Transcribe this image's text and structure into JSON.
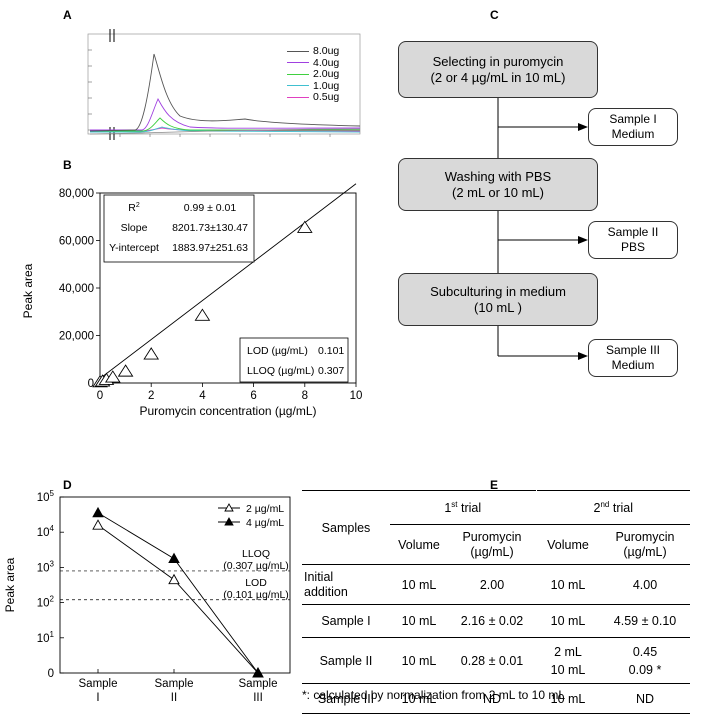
{
  "panels": {
    "A": "A",
    "B": "B",
    "C": "C",
    "D": "D",
    "E": "E"
  },
  "panel_a": {
    "legend": [
      {
        "label": "8.0ug",
        "color": "#555555"
      },
      {
        "label": "4.0ug",
        "color": "#a040e0"
      },
      {
        "label": "2.0ug",
        "color": "#40d040"
      },
      {
        "label": "1.0ug",
        "color": "#40c0d0"
      },
      {
        "label": "0.5ug",
        "color": "#e040c0"
      }
    ]
  },
  "chart_data": [
    {
      "type": "scatter",
      "panel": "B",
      "xlabel": "Puromycin concentration (µg/mL)",
      "ylabel": "Peak area",
      "xlim": [
        0,
        10
      ],
      "ylim": [
        0,
        80000
      ],
      "x_ticks": [
        "0",
        "2",
        "4",
        "6",
        "8",
        "10"
      ],
      "y_ticks": [
        "0",
        "20,000",
        "40,000",
        "60,000",
        "80,000"
      ],
      "points": [
        {
          "x": 0.0,
          "y": 500
        },
        {
          "x": 0.1,
          "y": 800
        },
        {
          "x": 0.25,
          "y": 1500
        },
        {
          "x": 0.5,
          "y": 2500
        },
        {
          "x": 1,
          "y": 5000
        },
        {
          "x": 2,
          "y": 12200
        },
        {
          "x": 4,
          "y": 28500
        },
        {
          "x": 8,
          "y": 65500
        }
      ],
      "fit": {
        "slope": 8201.73,
        "intercept": 1883.97
      },
      "stats": [
        {
          "label": "R",
          "sup": "2",
          "value": "0.99 ± 0.01"
        },
        {
          "label": "Slope",
          "sup": "",
          "value": "8201.73±130.47"
        },
        {
          "label": "Y-intercept",
          "sup": "",
          "value": "1883.97±251.63"
        }
      ],
      "limits": [
        {
          "label": "LOD (µg/mL)",
          "value": "0.101"
        },
        {
          "label": "LLOQ (µg/mL)",
          "value": "0.307"
        }
      ]
    },
    {
      "type": "line",
      "panel": "D",
      "ylabel": "Peak area",
      "categories": [
        "Sample I",
        "Sample II",
        "Sample III"
      ],
      "category_lines": [
        [
          "Sample",
          "I"
        ],
        [
          "Sample",
          "II"
        ],
        [
          "Sample",
          "III"
        ]
      ],
      "y_scale": "log",
      "y_ticks": [
        {
          "base": "0",
          "exp": ""
        },
        {
          "base": "10",
          "exp": "1"
        },
        {
          "base": "10",
          "exp": "2"
        },
        {
          "base": "10",
          "exp": "3"
        },
        {
          "base": "10",
          "exp": "4"
        },
        {
          "base": "10",
          "exp": "5"
        }
      ],
      "series": [
        {
          "name": "2 µg/mL",
          "marker": "open-triangle",
          "log_values": [
            4.2,
            2.65,
            0
          ]
        },
        {
          "name": "4 µg/mL",
          "marker": "filled-triangle",
          "log_values": [
            4.55,
            3.25,
            0
          ]
        }
      ],
      "reference_lines": [
        {
          "label_lines": [
            "LLOQ",
            "(0.307 µg/mL)"
          ],
          "log_value": 2.9
        },
        {
          "label_lines": [
            "LOD",
            "(0.101 µg/mL)"
          ],
          "log_value": 2.08
        }
      ]
    }
  ],
  "flowchart": {
    "steps": [
      {
        "lines": [
          "Selecting in puromycin",
          "(2 or 4 µg/mL in 10 mL)"
        ]
      },
      {
        "lines": [
          "Washing with PBS",
          "(2 mL or 10 mL)"
        ]
      },
      {
        "lines": [
          "Subculturing in medium",
          "(10 mL )"
        ]
      }
    ],
    "samples": [
      {
        "lines": [
          "Sample I",
          "Medium"
        ]
      },
      {
        "lines": [
          "Sample II",
          "PBS"
        ]
      },
      {
        "lines": [
          "Sample III",
          "Medium"
        ]
      }
    ]
  },
  "table": {
    "samples_header": "Samples",
    "trial1": {
      "num": "1",
      "sup": "st",
      "word": "trial"
    },
    "trial2": {
      "num": "2",
      "sup": "nd",
      "word": "trial"
    },
    "volume_header": "Volume",
    "puromycin_header": "Puromycin",
    "unit_header": "(µg/mL)",
    "rows": [
      {
        "sample_lines": [
          "Initial",
          "addition"
        ],
        "v1": "10 mL",
        "p1": "2.00",
        "v2": [
          "10 mL"
        ],
        "p2": [
          "4.00"
        ]
      },
      {
        "sample_lines": [
          "Sample I"
        ],
        "v1": "10 mL",
        "p1": "2.16 ± 0.02",
        "v2": [
          "10 mL"
        ],
        "p2": [
          "4.59 ± 0.10"
        ]
      },
      {
        "sample_lines": [
          "Sample II"
        ],
        "v1": "10 mL",
        "p1": "0.28 ± 0.01",
        "v2": [
          "2 mL",
          "10 mL"
        ],
        "p2": [
          "0.45",
          "0.09 *"
        ]
      },
      {
        "sample_lines": [
          "Sample III"
        ],
        "v1": "10 mL",
        "p1": "ND",
        "v2": [
          "10 mL"
        ],
        "p2": [
          "ND"
        ]
      }
    ],
    "footnote": "*: calculated by normalization from 2 mL to 10 mL"
  }
}
